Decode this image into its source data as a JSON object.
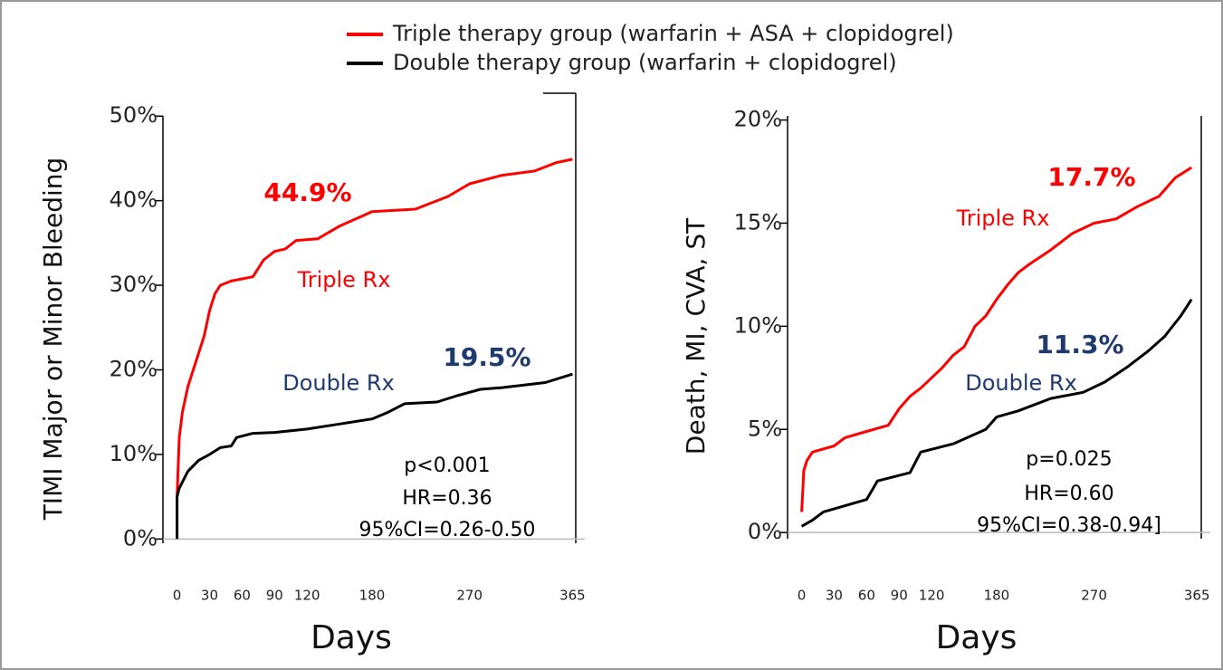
{
  "legend": [
    {
      "name": "Triple therapy group (warfarin + ASA + clopidogrel)",
      "color": "#ff0000"
    },
    {
      "name": "Double therapy group (warfarin + clopidogrel)",
      "color": "#000000"
    }
  ],
  "chart_data": [
    {
      "type": "line",
      "ylabel": "TIMI Major or Minor Bleeding",
      "xlabel": "Days",
      "xlim": [
        -13,
        368
      ],
      "ylim": [
        -0.5,
        52.7
      ],
      "xticks": [
        0,
        30,
        60,
        90,
        120,
        180,
        270,
        365
      ],
      "yticks": [
        {
          "value": 0,
          "label": "0%"
        },
        {
          "value": 10,
          "label": "10%"
        },
        {
          "value": 20,
          "label": "20%"
        },
        {
          "value": 30,
          "label": "30%"
        },
        {
          "value": 40,
          "label": "40%"
        },
        {
          "value": 50,
          "label": "50%"
        }
      ],
      "series": [
        {
          "name": "Triple Rx",
          "color": "#ff0000",
          "x": [
            0,
            2,
            5,
            10,
            15,
            20,
            25,
            30,
            35,
            40,
            50,
            70,
            80,
            90,
            100,
            110,
            130,
            150,
            180,
            220,
            250,
            270,
            300,
            330,
            350,
            365
          ],
          "values": [
            5,
            12,
            15,
            18,
            20,
            22,
            24,
            27,
            29,
            30,
            30.5,
            31,
            33,
            34,
            34.3,
            35.3,
            35.5,
            37,
            38.7,
            39,
            40.5,
            42,
            43,
            43.5,
            44.5,
            44.9
          ]
        },
        {
          "name": "Double Rx",
          "color": "#000000",
          "x": [
            0,
            0,
            2,
            10,
            20,
            30,
            40,
            50,
            55,
            70,
            90,
            120,
            150,
            180,
            195,
            210,
            240,
            260,
            280,
            300,
            340,
            365
          ],
          "values": [
            0,
            5,
            6,
            8,
            9.3,
            10,
            10.8,
            11,
            12,
            12.5,
            12.6,
            13,
            13.6,
            14.2,
            15,
            16,
            16.2,
            17,
            17.7,
            17.9,
            18.5,
            19.5
          ]
        }
      ],
      "annotations": [
        {
          "text": "44.9%",
          "color": "#ff0000"
        },
        {
          "text": "19.5%",
          "color": "#1f3a6e"
        },
        {
          "text": "p<0.001",
          "color": "#000000"
        },
        {
          "text": "HR=0.36",
          "color": "#000000"
        },
        {
          "text": "95%CI=0.26-0.50",
          "color": "#000000"
        }
      ]
    },
    {
      "type": "line",
      "ylabel": "Death, MI, CVA, ST",
      "xlabel": "Days",
      "xlim": [
        -13,
        369
      ],
      "ylim": [
        -0.3,
        20.2
      ],
      "xticks": [
        0,
        30,
        60,
        90,
        120,
        180,
        270,
        365
      ],
      "yticks": [
        {
          "value": 0,
          "label": "0%"
        },
        {
          "value": 5,
          "label": "5%"
        },
        {
          "value": 10,
          "label": "10%"
        },
        {
          "value": 15,
          "label": "15%"
        },
        {
          "value": 20,
          "label": "20%"
        }
      ],
      "series": [
        {
          "name": "Triple Rx",
          "color": "#ff0000",
          "x": [
            0,
            2,
            5,
            10,
            30,
            40,
            60,
            80,
            90,
            100,
            110,
            120,
            130,
            140,
            150,
            160,
            170,
            180,
            190,
            200,
            210,
            230,
            250,
            270,
            290,
            310,
            330,
            345,
            360
          ],
          "values": [
            1,
            3,
            3.5,
            3.9,
            4.2,
            4.6,
            4.9,
            5.2,
            6,
            6.6,
            7,
            7.5,
            8,
            8.6,
            9,
            10,
            10.5,
            11.3,
            12,
            12.6,
            13,
            13.7,
            14.5,
            15,
            15.2,
            15.8,
            16.3,
            17.2,
            17.7
          ]
        },
        {
          "name": "Double Rx",
          "color": "#000000",
          "x": [
            0,
            10,
            20,
            60,
            70,
            100,
            110,
            140,
            170,
            180,
            200,
            230,
            260,
            280,
            300,
            320,
            335,
            350,
            360
          ],
          "values": [
            0.3,
            0.6,
            1,
            1.6,
            2.5,
            2.9,
            3.9,
            4.3,
            5,
            5.6,
            5.9,
            6.5,
            6.8,
            7.3,
            8,
            8.8,
            9.5,
            10.5,
            11.3
          ]
        }
      ],
      "annotations": [
        {
          "text": "17.7%",
          "color": "#ff0000"
        },
        {
          "text": "11.3%",
          "color": "#1f3a6e"
        },
        {
          "text": "p=0.025",
          "color": "#000000"
        },
        {
          "text": "HR=0.60",
          "color": "#000000"
        },
        {
          "text": "95%CI=0.38-0.94]",
          "color": "#000000"
        }
      ]
    }
  ]
}
